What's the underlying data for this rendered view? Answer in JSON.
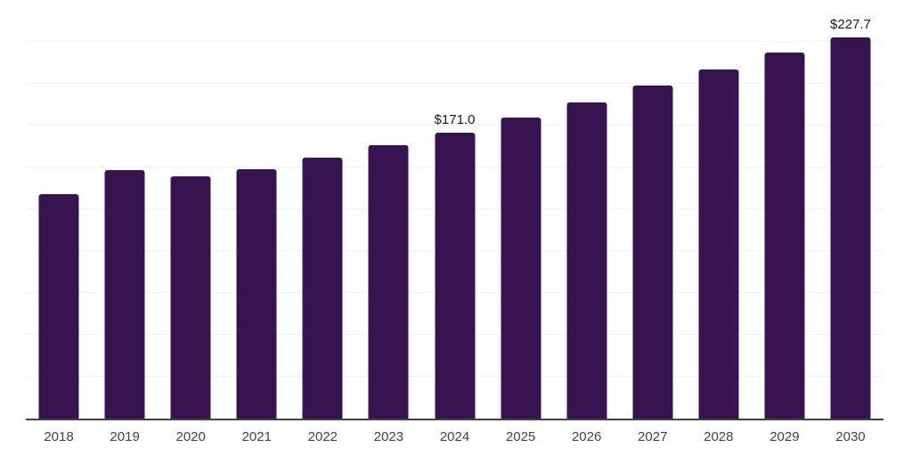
{
  "chart_data": {
    "type": "bar",
    "title": "",
    "xlabel": "",
    "ylabel": "",
    "categories": [
      "2018",
      "2019",
      "2020",
      "2021",
      "2022",
      "2023",
      "2024",
      "2025",
      "2026",
      "2027",
      "2028",
      "2029",
      "2030"
    ],
    "values": [
      134,
      148.5,
      144.5,
      149,
      156,
      163.5,
      171.0,
      180,
      189,
      199,
      208.5,
      218.5,
      227.7
    ],
    "data_labels": [
      "",
      "",
      "",
      "",
      "",
      "",
      "$171.0",
      "",
      "",
      "",
      "",
      "",
      "$227.7"
    ],
    "ylim": [
      0,
      250
    ],
    "gridline_step": 25,
    "grid": true,
    "legend": "none",
    "y_axis_labels_visible": false,
    "colors": {
      "bar": "#371450",
      "gridline": "#f2f2f2",
      "axis_line": "#424242",
      "tick_label": "#424242",
      "data_label": "#1a1a1a",
      "background": "#ffffff"
    }
  }
}
